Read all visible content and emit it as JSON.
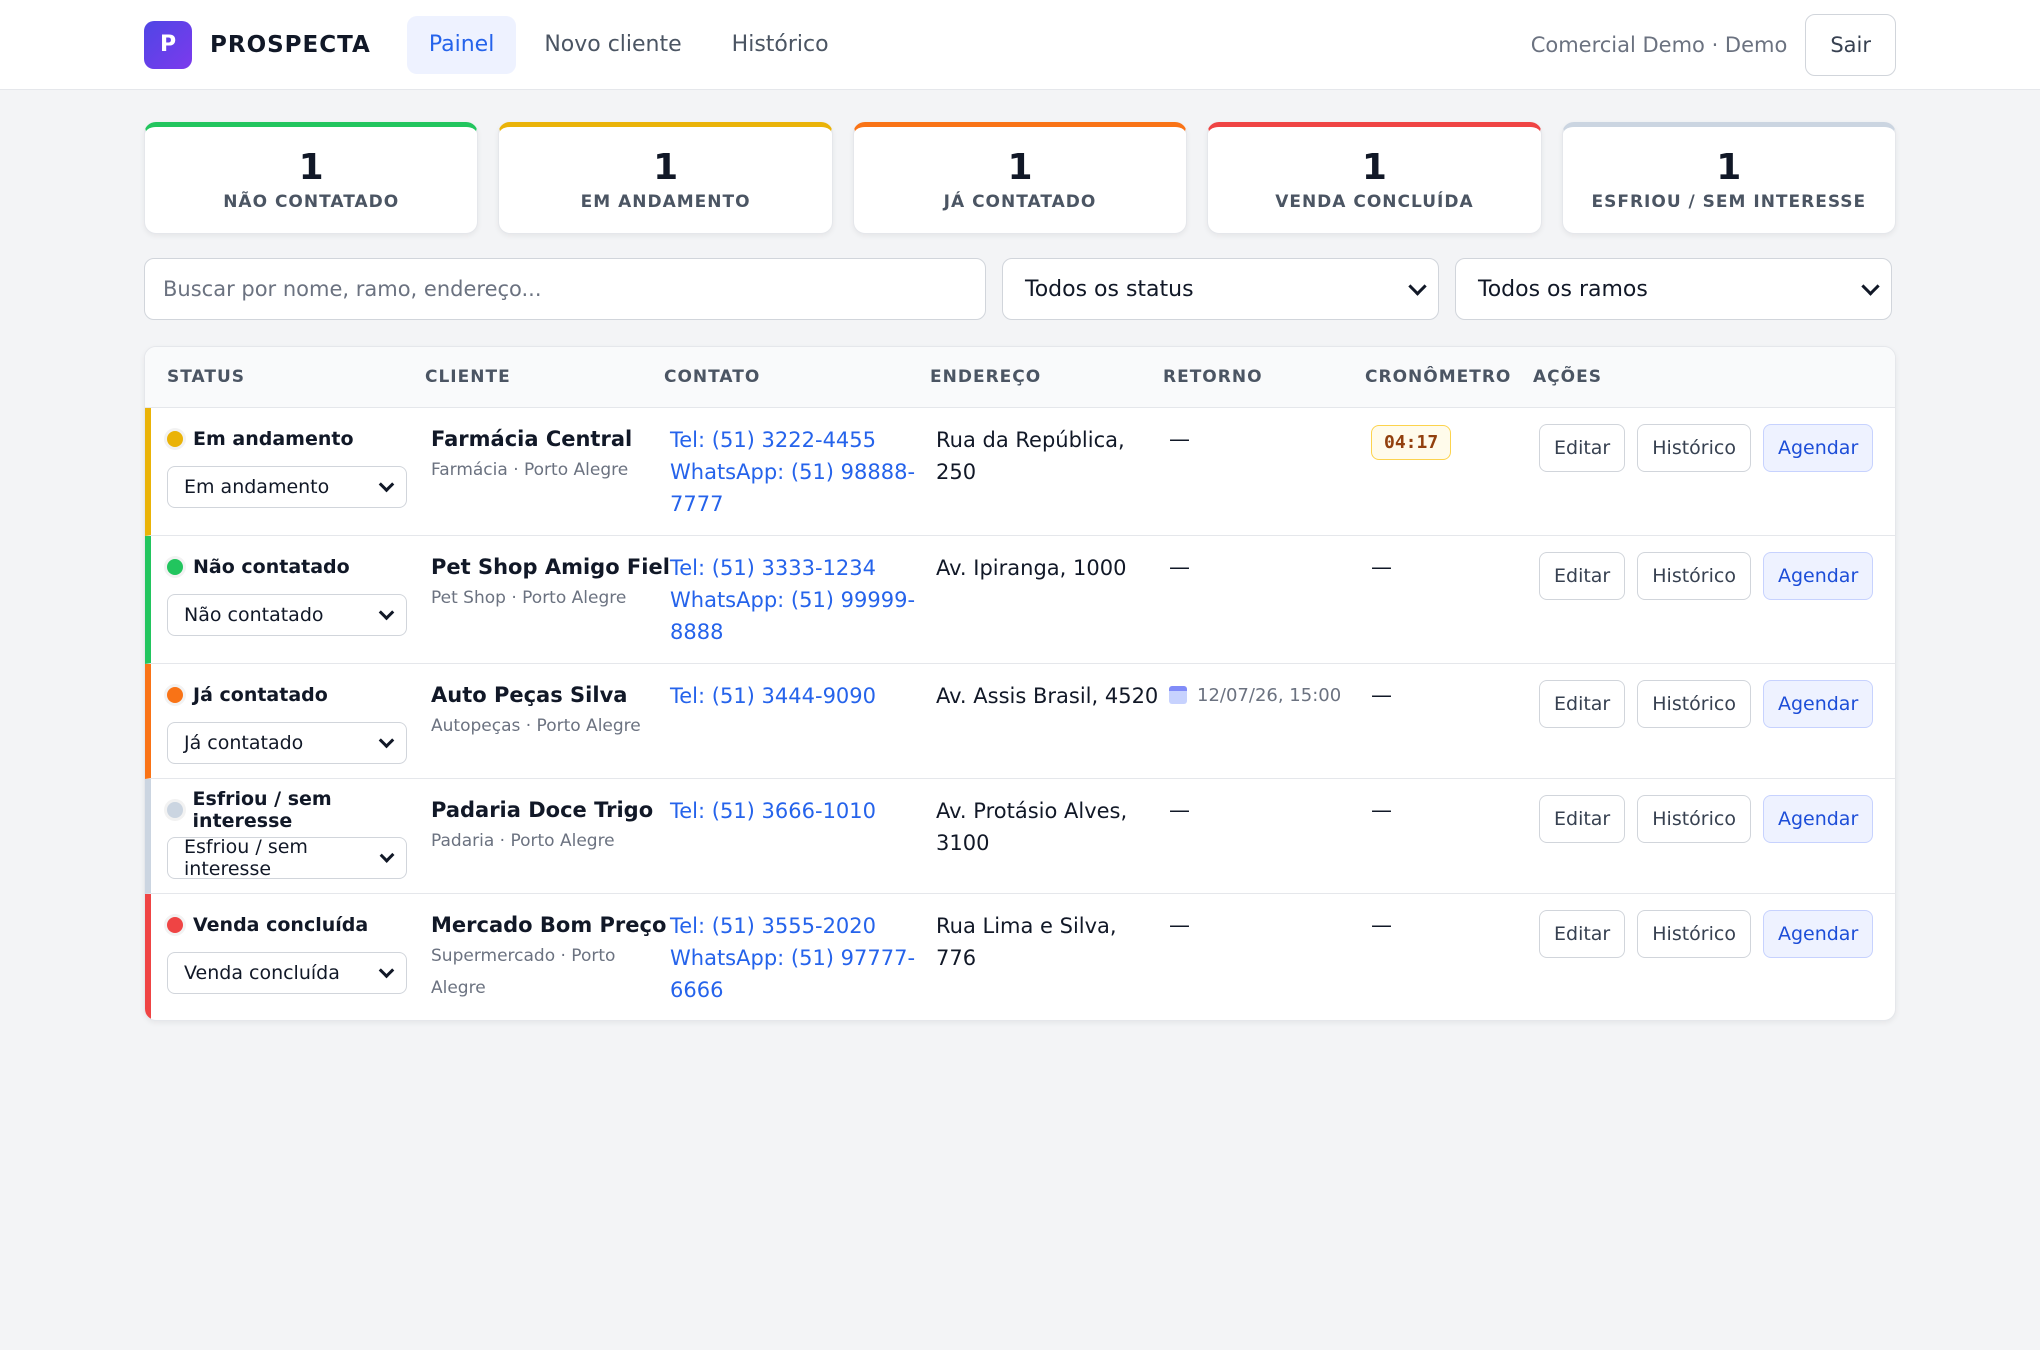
{
  "brand": {
    "logo_letter": "P",
    "name": "PROSPECTA"
  },
  "nav": {
    "painel": "Painel",
    "novo_cliente": "Novo cliente",
    "historico": "Histórico"
  },
  "header": {
    "user": "Comercial Demo · Demo",
    "logout": "Sair"
  },
  "colors": {
    "nao_contatado": "#22c55e",
    "em_andamento": "#eab308",
    "ja_contatado": "#f97316",
    "venda_concluida": "#ef4444",
    "esfriou": "#cbd5e1",
    "accent": "#2563eb"
  },
  "stats": [
    {
      "count": "1",
      "label": "NÃO CONTATADO"
    },
    {
      "count": "1",
      "label": "EM ANDAMENTO"
    },
    {
      "count": "1",
      "label": "JÁ CONTATADO"
    },
    {
      "count": "1",
      "label": "VENDA CONCLUÍDA"
    },
    {
      "count": "1",
      "label": "ESFRIOU / SEM INTERESSE"
    }
  ],
  "filters": {
    "search_placeholder": "Buscar por nome, ramo, endereço...",
    "status_value": "Todos os status",
    "ramo_value": "Todos os ramos"
  },
  "table": {
    "headers": {
      "status": "STATUS",
      "cliente": "CLIENTE",
      "contato": "CONTATO",
      "endereco": "ENDEREÇO",
      "retorno": "RETORNO",
      "cronometro": "CRONÔMETRO",
      "acoes": "AÇÕES"
    },
    "actions": {
      "editar": "Editar",
      "historico": "Histórico",
      "agendar": "Agendar"
    },
    "rows": [
      {
        "status": "Em andamento",
        "select": "Em andamento",
        "name": "Farmácia Central",
        "meta": "Farmácia · Porto Alegre",
        "tel": "Tel: (51) 3222-4455",
        "wa1": "WhatsApp: (51) 98888-",
        "wa2": "7777",
        "addr1": "Rua da República,",
        "addr2": "250",
        "retorno": "—",
        "timer": "04:17"
      },
      {
        "status": "Não contatado",
        "select": "Não contatado",
        "name": "Pet Shop Amigo Fiel",
        "meta": "Pet Shop · Porto Alegre",
        "tel": "Tel: (51) 3333-1234",
        "wa1": "WhatsApp: (51) 99999-",
        "wa2": "8888",
        "addr1": "Av. Ipiranga, 1000",
        "retorno": "—",
        "crono": "—"
      },
      {
        "status": "Já contatado",
        "select": "Já contatado",
        "name": "Auto Peças Silva",
        "meta": "Autopeças · Porto Alegre",
        "tel": "Tel: (51) 3444-9090",
        "addr1": "Av. Assis Brasil, 4520",
        "retorno_date": "12/07/26, 15:00",
        "crono": "—"
      },
      {
        "status": "Esfriou / sem interesse",
        "select": "Esfriou / sem interesse",
        "name": "Padaria Doce Trigo",
        "meta": "Padaria · Porto Alegre",
        "tel": "Tel: (51) 3666-1010",
        "addr1": "Av. Protásio Alves,",
        "addr2": "3100",
        "retorno": "—",
        "crono": "—"
      },
      {
        "status": "Venda concluída",
        "select": "Venda concluída",
        "name": "Mercado Bom Preço",
        "meta1": "Supermercado · Porto",
        "meta2": "Alegre",
        "tel": "Tel: (51) 3555-2020",
        "wa1": "WhatsApp: (51) 97777-",
        "wa2": "6666",
        "addr1": "Rua Lima e Silva,",
        "addr2": "776",
        "retorno": "—",
        "crono": "—"
      }
    ]
  }
}
